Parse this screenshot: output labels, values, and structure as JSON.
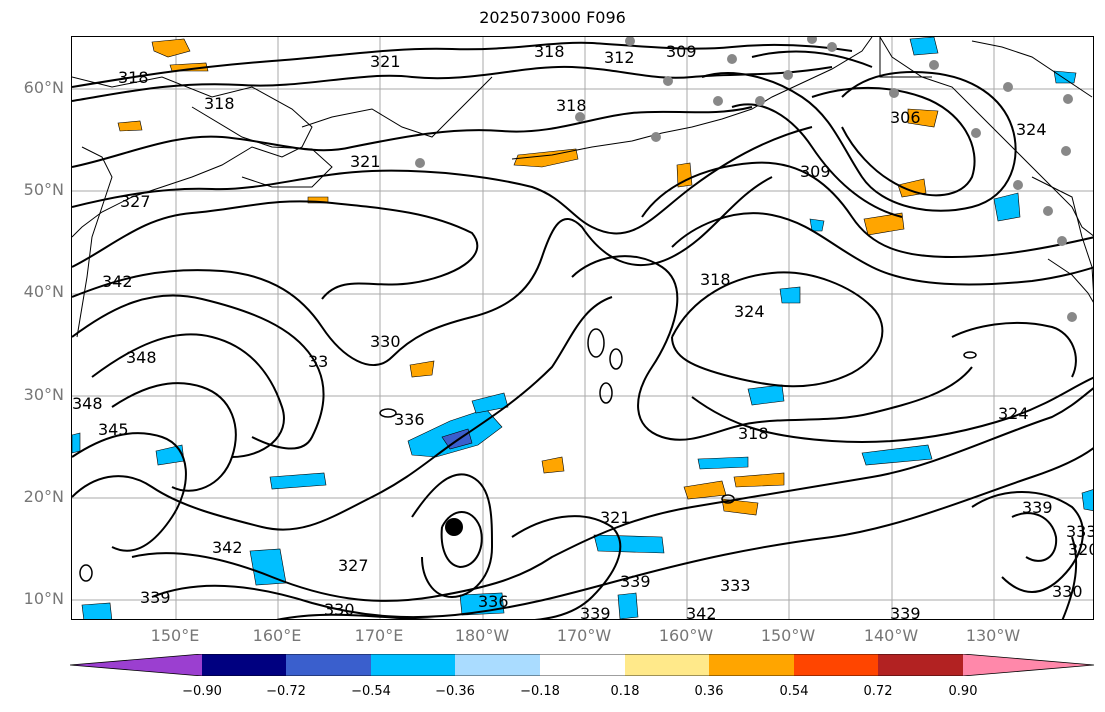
{
  "title": "2025073000 F096",
  "lat_labels": [
    "60°N",
    "50°N",
    "40°N",
    "30°N",
    "20°N",
    "10°N"
  ],
  "lon_labels": [
    "150°E",
    "160°E",
    "170°E",
    "180°W",
    "170°W",
    "160°W",
    "150°W",
    "140°W",
    "130°W"
  ],
  "contour_labels": [
    "318",
    "321",
    "318",
    "312",
    "309",
    "318",
    "306",
    "324",
    "321",
    "327",
    "309",
    "342",
    "318",
    "324",
    "318",
    "330",
    "348",
    "33",
    "348",
    "345",
    "336",
    "318",
    "324",
    "342",
    "339",
    "321",
    "327",
    "330",
    "336",
    "339",
    "342",
    "333",
    "339",
    "339",
    "330",
    "320",
    "339",
    "333"
  ],
  "colorbar": {
    "ticks": [
      "−0.90",
      "−0.72",
      "−0.54",
      "−0.36",
      "−0.18",
      "0.18",
      "0.36",
      "0.54",
      "0.72",
      "0.90"
    ],
    "colors": [
      "#9b3fd0",
      "#000080",
      "#3a5fcd",
      "#00bfff",
      "#aadcff",
      "#ffffff",
      "#ffe98a",
      "#ffa500",
      "#ff4500",
      "#b22222",
      "#ff88aa"
    ]
  }
}
